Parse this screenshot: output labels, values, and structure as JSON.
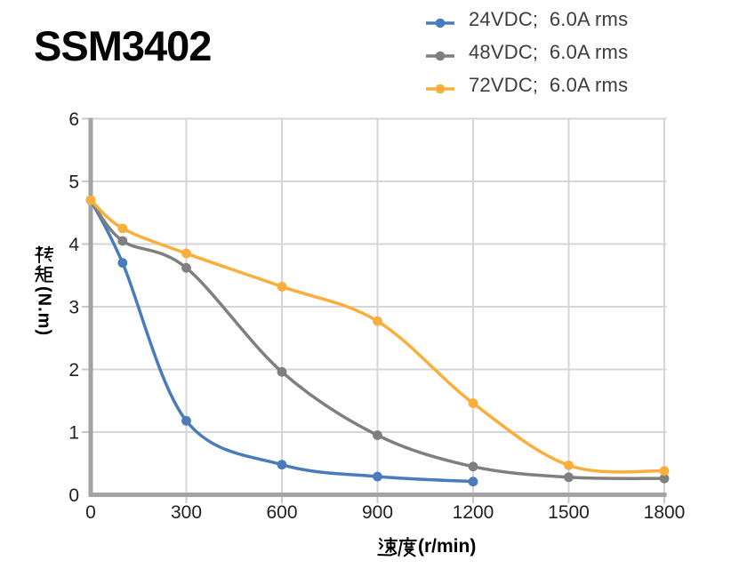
{
  "title": "SSM3402",
  "legend": {
    "items": [
      {
        "label": "24VDC;  6.0A rms"
      },
      {
        "label": "48VDC;  6.0A rms"
      },
      {
        "label": "72VDC;  6.0A rms"
      }
    ]
  },
  "chart_data": {
    "type": "line",
    "title": "SSM3402",
    "xlabel": "速度(r/min)",
    "ylabel": "转矩(N.m)",
    "xlim": [
      0,
      1800
    ],
    "ylim": [
      0,
      6
    ],
    "x_ticks": [
      0,
      300,
      600,
      900,
      1200,
      1500,
      1800
    ],
    "y_ticks": [
      0,
      1,
      2,
      3,
      4,
      5,
      6
    ],
    "grid": true,
    "line_smoothing": true,
    "legend_position": "top-right",
    "series": [
      {
        "key": "24vdc",
        "name": "24VDC; 6.0A rms",
        "color": "#4A7BBA",
        "points": [
          [
            0,
            4.7
          ],
          [
            100,
            3.7
          ],
          [
            300,
            1.18
          ],
          [
            600,
            0.48
          ],
          [
            900,
            0.29
          ],
          [
            1200,
            0.21
          ]
        ]
      },
      {
        "key": "48vdc",
        "name": "48VDC; 6.0A rms",
        "color": "#7F7F7F",
        "points": [
          [
            0,
            4.7
          ],
          [
            100,
            4.05
          ],
          [
            300,
            3.62
          ],
          [
            600,
            1.96
          ],
          [
            900,
            0.95
          ],
          [
            1200,
            0.45
          ],
          [
            1500,
            0.28
          ],
          [
            1800,
            0.26
          ]
        ]
      },
      {
        "key": "72vdc",
        "name": "72VDC; 6.0A rms",
        "color": "#FAAE3C",
        "points": [
          [
            0,
            4.7
          ],
          [
            100,
            4.25
          ],
          [
            300,
            3.85
          ],
          [
            600,
            3.32
          ],
          [
            900,
            2.77
          ],
          [
            1200,
            1.46
          ],
          [
            1500,
            0.47
          ],
          [
            1800,
            0.38
          ]
        ]
      }
    ],
    "colors": {
      "axis": "#A3A3A3",
      "grid": "#D6D6D6",
      "tick": "#C9C9C9",
      "tick_label": "#1F1F1F"
    }
  }
}
